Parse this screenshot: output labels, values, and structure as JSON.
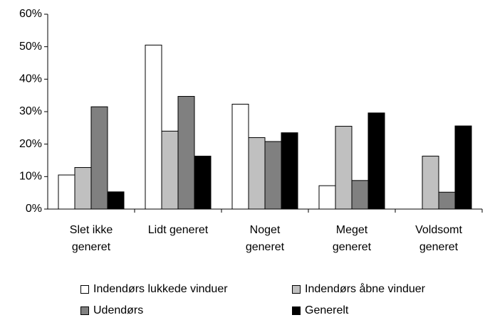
{
  "chart_data": {
    "type": "bar",
    "categories": [
      "Slet ikke generet",
      "Lidt generet",
      "Noget generet",
      "Meget generet",
      "Voldsomt generet"
    ],
    "series": [
      {
        "name": "Indendørs lukkede vinduer",
        "color": "#ffffff",
        "values": [
          10.5,
          50.5,
          32.3,
          7.2,
          0
        ]
      },
      {
        "name": "Indendørs åbne vinduer",
        "color": "#c0c0c0",
        "values": [
          12.8,
          24,
          22,
          25.5,
          16.3
        ]
      },
      {
        "name": "Udendørs",
        "color": "#808080",
        "values": [
          31.5,
          34.7,
          20.8,
          8.8,
          5.2
        ]
      },
      {
        "name": "Generelt",
        "color": "#000000",
        "values": [
          5.3,
          16.3,
          23.5,
          29.6,
          25.6
        ]
      }
    ],
    "ylim": [
      0,
      60
    ],
    "yticks": [
      {
        "value": 0,
        "label": "0%"
      },
      {
        "value": 10,
        "label": "10%"
      },
      {
        "value": 20,
        "label": "20%"
      },
      {
        "value": 30,
        "label": "30%"
      },
      {
        "value": 40,
        "label": "40%"
      },
      {
        "value": 50,
        "label": "50%"
      },
      {
        "value": 60,
        "label": "60%"
      }
    ],
    "grid": false,
    "legend": "bottom"
  }
}
